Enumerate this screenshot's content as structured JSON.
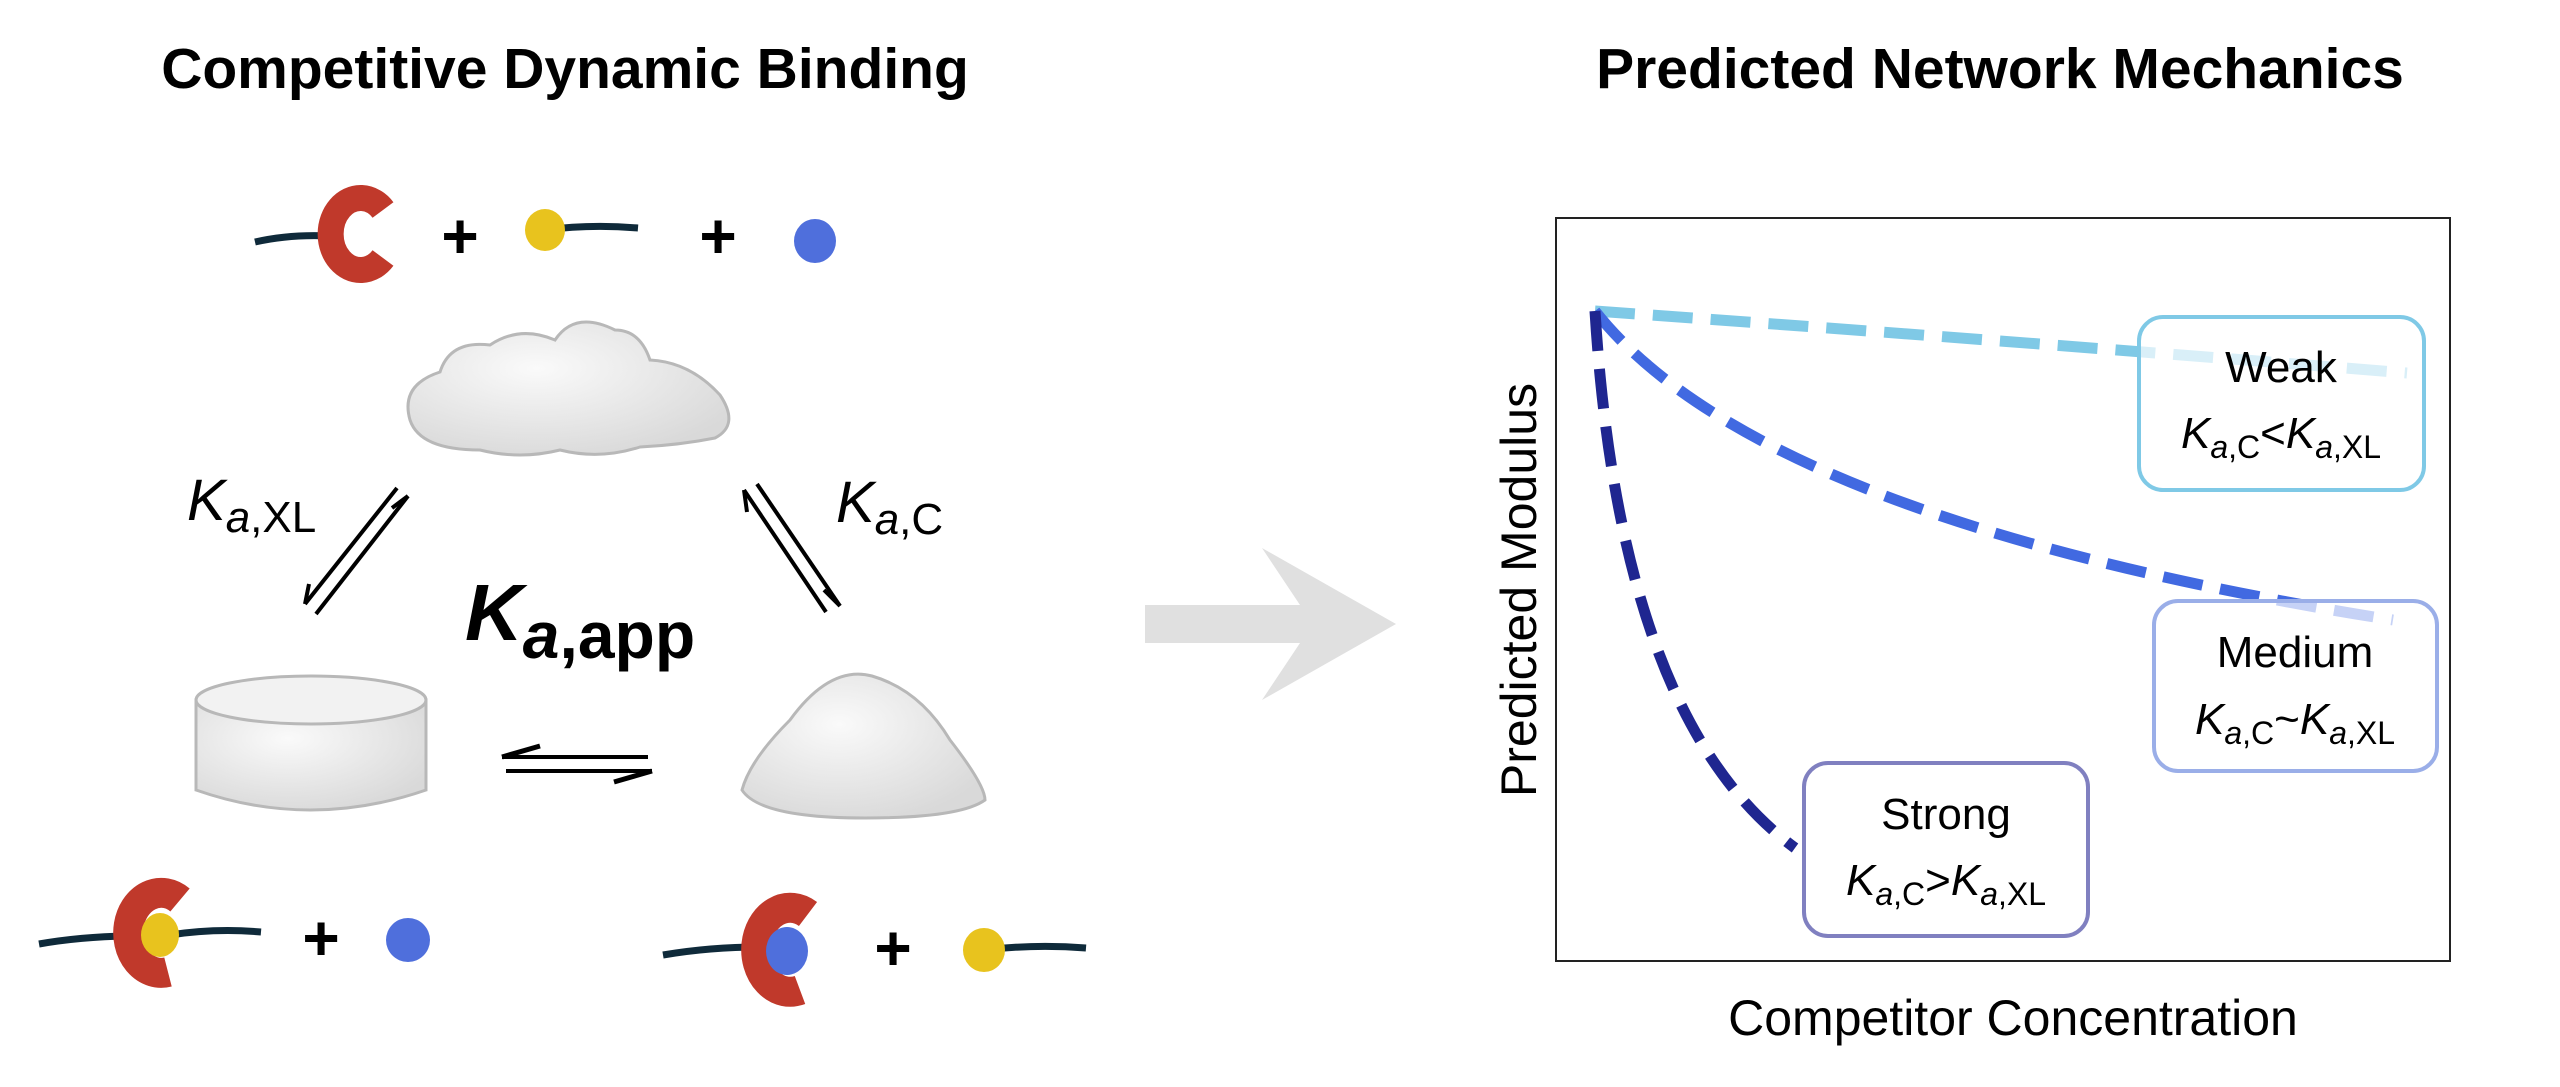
{
  "left_panel": {
    "title": "Competitive Dynamic Binding",
    "plus": "+",
    "k_xl": {
      "symbol": "K",
      "sub_a": "a",
      "sub_rest": ",XL"
    },
    "k_c": {
      "symbol": "K",
      "sub_a": "a",
      "sub_rest": ",C"
    },
    "k_app": {
      "symbol": "K",
      "sub_a": "a",
      "sub_rest": ",app"
    }
  },
  "right_panel": {
    "title": "Predicted Network Mechanics",
    "ylabel": "Predicted Modulus",
    "xlabel": "Competitor Concentration",
    "boxes": [
      {
        "name": "Weak",
        "lhs_sym": "K",
        "lhs_a": "a",
        "lhs_rest": ",C",
        "relation": "<",
        "rhs_sym": "K",
        "rhs_a": "a",
        "rhs_rest": ",XL"
      },
      {
        "name": "Medium",
        "lhs_sym": "K",
        "lhs_a": "a",
        "lhs_rest": ",C",
        "relation": "~",
        "rhs_sym": "K",
        "rhs_a": "a",
        "rhs_rest": ",XL"
      },
      {
        "name": "Strong",
        "lhs_sym": "K",
        "lhs_a": "a",
        "lhs_rest": ",C",
        "relation": ">",
        "rhs_sym": "K",
        "rhs_a": "a",
        "rhs_rest": ",XL"
      }
    ]
  },
  "colors": {
    "crosslinker_host": "#c0392b",
    "crosslinker_guest": "#e8c31e",
    "competitor": "#4f6fdc",
    "strand": "#0f2a3a",
    "weak": "#7fc9e6",
    "medium": "#4169e1",
    "strong": "#1f2690",
    "arrow_gray": "#e0e0e0"
  }
}
